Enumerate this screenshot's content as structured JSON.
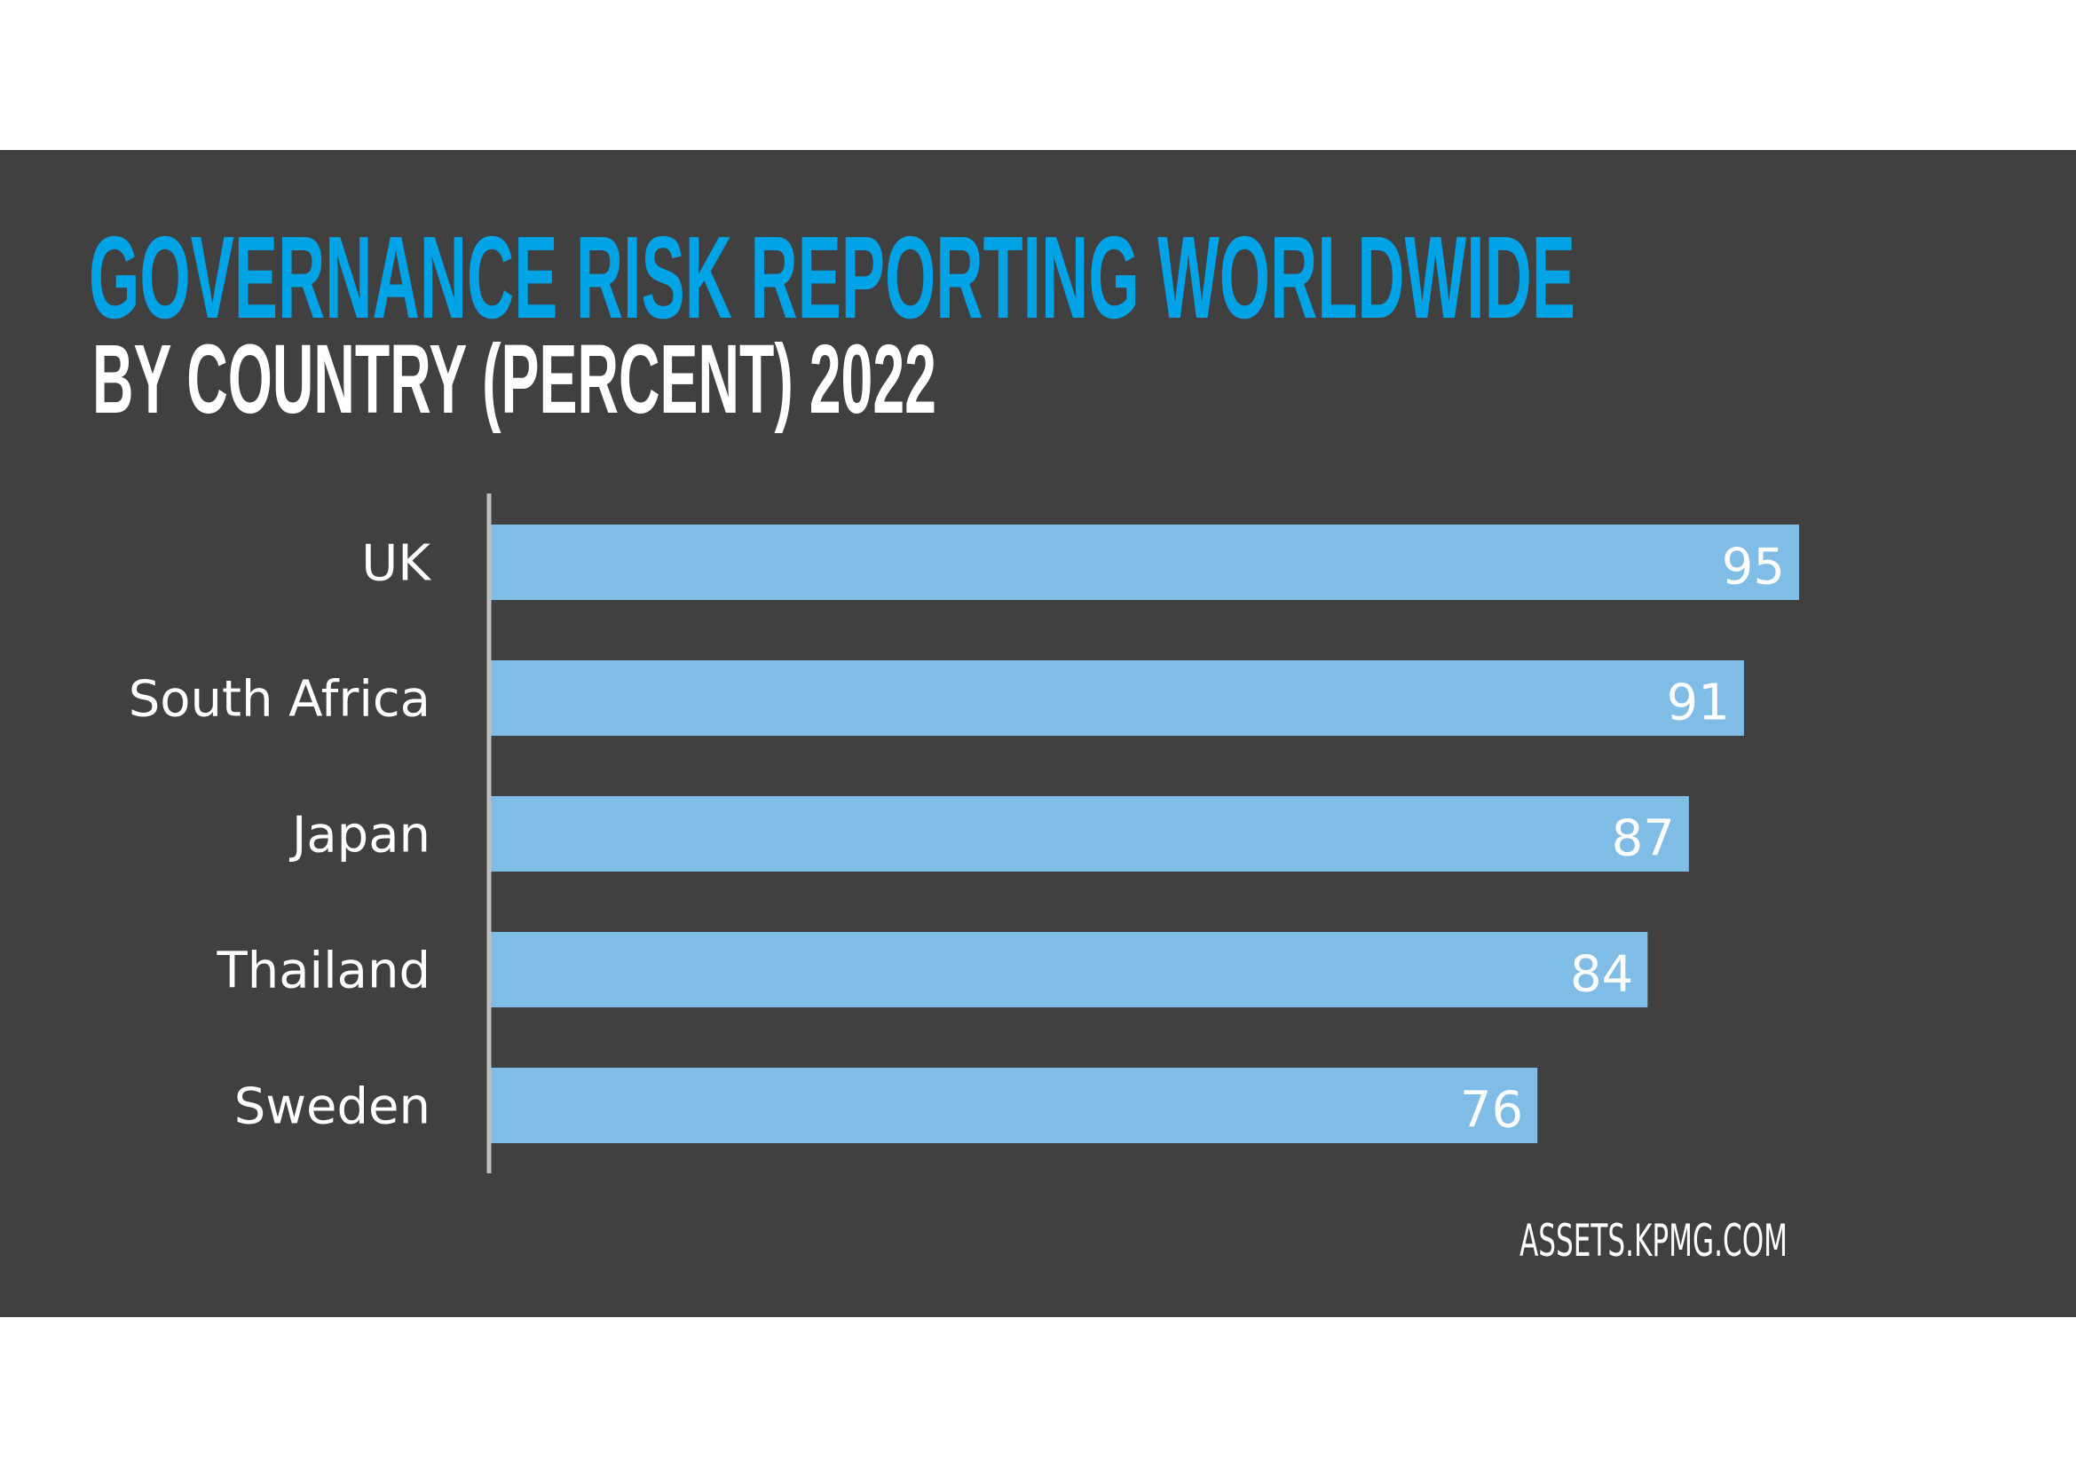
{
  "chart_data": {
    "type": "bar",
    "orientation": "horizontal",
    "title": "GOVERNANCE RISK REPORTING WORLDWIDE",
    "subtitle": "BY COUNTRY (PERCENT) 2022",
    "categories": [
      "UK",
      "South Africa",
      "Japan",
      "Thailand",
      "Sweden"
    ],
    "values": [
      95,
      91,
      87,
      84,
      76
    ],
    "xlabel": "",
    "ylabel": "",
    "xlim": [
      0,
      100
    ],
    "grid": false,
    "source": "ASSETS.KPMG.COM",
    "colors": {
      "background": "#404040",
      "bar": "#7fbce6",
      "title": "#00a3e6",
      "axis": "#bfbfbf"
    }
  }
}
